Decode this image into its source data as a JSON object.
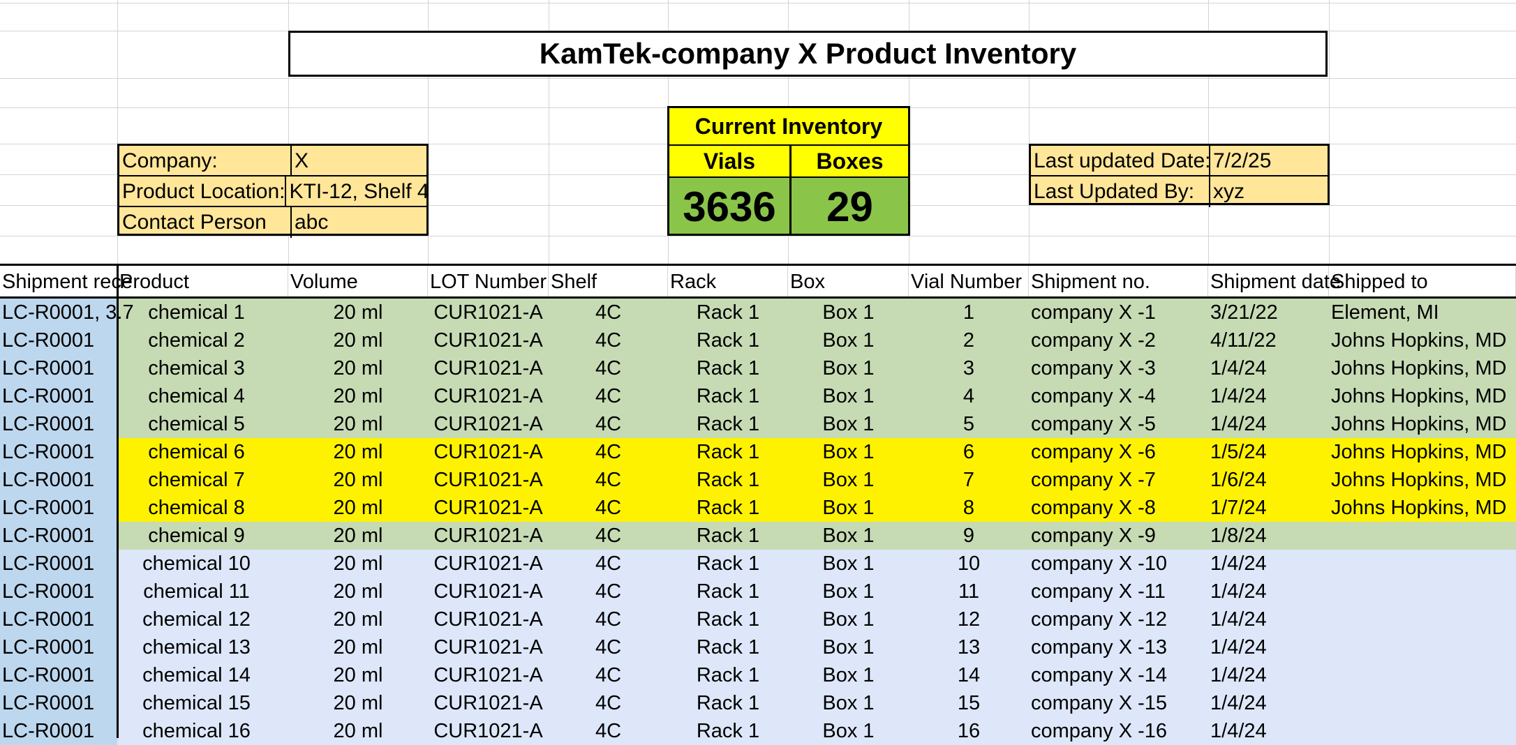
{
  "title": "KamTek-company X  Product Inventory",
  "info": [
    {
      "label": "Company:",
      "value": "X"
    },
    {
      "label": "Product Location:",
      "value": "KTI-12, Shelf 4"
    },
    {
      "label": "Contact Person",
      "value": "abc"
    }
  ],
  "inventory": {
    "title": "Current Inventory",
    "vials_label": "Vials",
    "boxes_label": "Boxes",
    "vials": "3636",
    "boxes": "29"
  },
  "updated": [
    {
      "label": "Last updated Date:",
      "value": "7/2/25"
    },
    {
      "label": "Last Updated By:",
      "value": "xyz"
    }
  ],
  "columns": [
    "Shipment rece",
    "Product",
    "Volume",
    "LOT Number",
    "Shelf",
    "Rack",
    "Box",
    "Vial Number",
    "Shipment no.",
    "Shipment date",
    "Shipped to"
  ],
  "rows": [
    {
      "c": [
        "LC-R0001, 3.7",
        "chemical 1",
        "20 ml",
        "CUR1021-A",
        "4C",
        "Rack 1",
        "Box 1",
        "1",
        "company X -1",
        "3/21/22",
        "Element, MI"
      ],
      "color": "green"
    },
    {
      "c": [
        "LC-R0001",
        "chemical 2",
        "20 ml",
        "CUR1021-A",
        "4C",
        "Rack 1",
        "Box 1",
        "2",
        "company X -2",
        "4/11/22",
        "Johns Hopkins, MD"
      ],
      "color": "green"
    },
    {
      "c": [
        "LC-R0001",
        "chemical 3",
        "20 ml",
        "CUR1021-A",
        "4C",
        "Rack 1",
        "Box 1",
        "3",
        "company X -3",
        "1/4/24",
        "Johns Hopkins, MD"
      ],
      "color": "green"
    },
    {
      "c": [
        "LC-R0001",
        "chemical 4",
        "20 ml",
        "CUR1021-A",
        "4C",
        "Rack 1",
        "Box 1",
        "4",
        "company X -4",
        "1/4/24",
        "Johns Hopkins, MD"
      ],
      "color": "green"
    },
    {
      "c": [
        "LC-R0001",
        "chemical 5",
        "20 ml",
        "CUR1021-A",
        "4C",
        "Rack 1",
        "Box 1",
        "5",
        "company X -5",
        "1/4/24",
        "Johns Hopkins, MD"
      ],
      "color": "green"
    },
    {
      "c": [
        "LC-R0001",
        "chemical 6",
        "20 ml",
        "CUR1021-A",
        "4C",
        "Rack 1",
        "Box 1",
        "6",
        "company X -6",
        "1/5/24",
        "Johns Hopkins, MD"
      ],
      "color": "yellow"
    },
    {
      "c": [
        "LC-R0001",
        "chemical 7",
        "20 ml",
        "CUR1021-A",
        "4C",
        "Rack 1",
        "Box 1",
        "7",
        "company X -7",
        "1/6/24",
        "Johns Hopkins, MD"
      ],
      "color": "yellow"
    },
    {
      "c": [
        "LC-R0001",
        "chemical 8",
        "20 ml",
        "CUR1021-A",
        "4C",
        "Rack 1",
        "Box 1",
        "8",
        "company X -8",
        "1/7/24",
        "Johns Hopkins, MD"
      ],
      "color": "yellow"
    },
    {
      "c": [
        "LC-R0001",
        "chemical 9",
        "20 ml",
        "CUR1021-A",
        "4C",
        "Rack 1",
        "Box 1",
        "9",
        "company X -9",
        "1/8/24",
        ""
      ],
      "color": "green"
    },
    {
      "c": [
        "LC-R0001",
        "chemical 10",
        "20 ml",
        "CUR1021-A",
        "4C",
        "Rack 1",
        "Box 1",
        "10",
        "company X -10",
        "1/4/24",
        ""
      ],
      "color": "blue"
    },
    {
      "c": [
        "LC-R0001",
        "chemical 11",
        "20 ml",
        "CUR1021-A",
        "4C",
        "Rack 1",
        "Box 1",
        "11",
        "company X -11",
        "1/4/24",
        ""
      ],
      "color": "blue"
    },
    {
      "c": [
        "LC-R0001",
        "chemical 12",
        "20 ml",
        "CUR1021-A",
        "4C",
        "Rack 1",
        "Box 1",
        "12",
        "company X -12",
        "1/4/24",
        ""
      ],
      "color": "blue"
    },
    {
      "c": [
        "LC-R0001",
        "chemical 13",
        "20 ml",
        "CUR1021-A",
        "4C",
        "Rack 1",
        "Box 1",
        "13",
        "company X -13",
        "1/4/24",
        ""
      ],
      "color": "blue"
    },
    {
      "c": [
        "LC-R0001",
        "chemical 14",
        "20 ml",
        "CUR1021-A",
        "4C",
        "Rack 1",
        "Box 1",
        "14",
        "company X -14",
        "1/4/24",
        ""
      ],
      "color": "blue"
    },
    {
      "c": [
        "LC-R0001",
        "chemical 15",
        "20 ml",
        "CUR1021-A",
        "4C",
        "Rack 1",
        "Box 1",
        "15",
        "company X -15",
        "1/4/24",
        ""
      ],
      "color": "blue"
    },
    {
      "c": [
        "LC-R0001",
        "chemical 16",
        "20 ml",
        "CUR1021-A",
        "4C",
        "Rack 1",
        "Box 1",
        "16",
        "company X -16",
        "1/4/24",
        ""
      ],
      "color": "blue"
    }
  ]
}
